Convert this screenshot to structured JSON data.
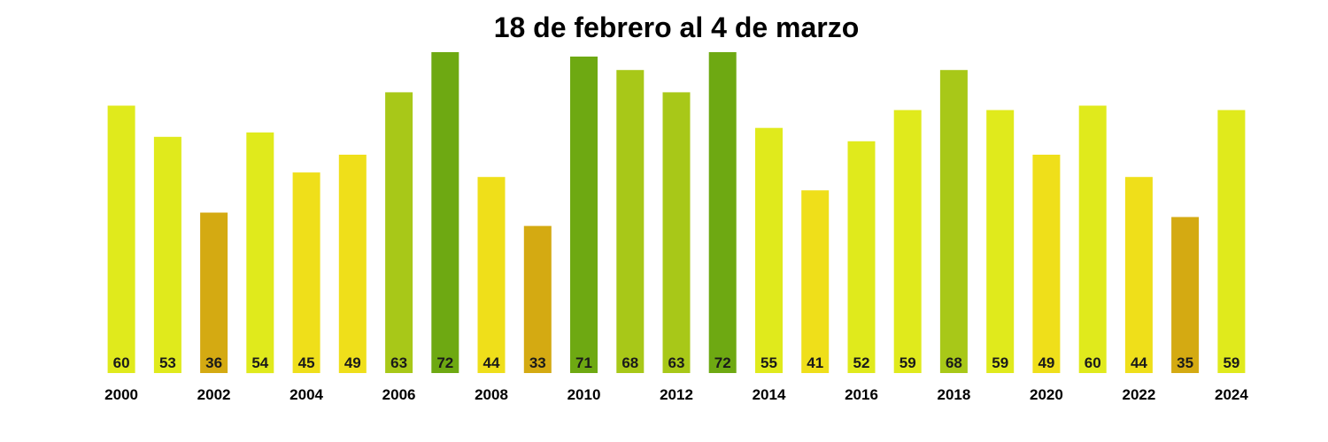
{
  "chart_data": {
    "type": "bar",
    "title": "18 de febrero al 4 de marzo",
    "xlabel": "",
    "ylabel": "",
    "categories": [
      "2000",
      "2001",
      "2002",
      "2003",
      "2004",
      "2005",
      "2006",
      "2007",
      "2008",
      "2009",
      "2010",
      "2011",
      "2012",
      "2013",
      "2014",
      "2015",
      "2016",
      "2017",
      "2018",
      "2019",
      "2020",
      "2021",
      "2022",
      "2023",
      "2024"
    ],
    "values": [
      60,
      53,
      36,
      54,
      45,
      49,
      63,
      72,
      44,
      33,
      71,
      68,
      63,
      72,
      55,
      41,
      52,
      59,
      68,
      59,
      49,
      60,
      44,
      35,
      59
    ],
    "tick_labels": [
      "2000",
      "2002",
      "2004",
      "2006",
      "2008",
      "2010",
      "2012",
      "2014",
      "2016",
      "2018",
      "2020",
      "2022",
      "2024"
    ],
    "ylim": [
      0,
      72
    ],
    "grid": false,
    "legend": "none",
    "color_scale": [
      {
        "max": 39,
        "color": "#d4aa12"
      },
      {
        "max": 49,
        "color": "#efdf1a"
      },
      {
        "max": 60,
        "color": "#e0ea1c"
      },
      {
        "max": 68,
        "color": "#a8c818"
      },
      {
        "max": 72,
        "color": "#6ea912"
      }
    ]
  }
}
